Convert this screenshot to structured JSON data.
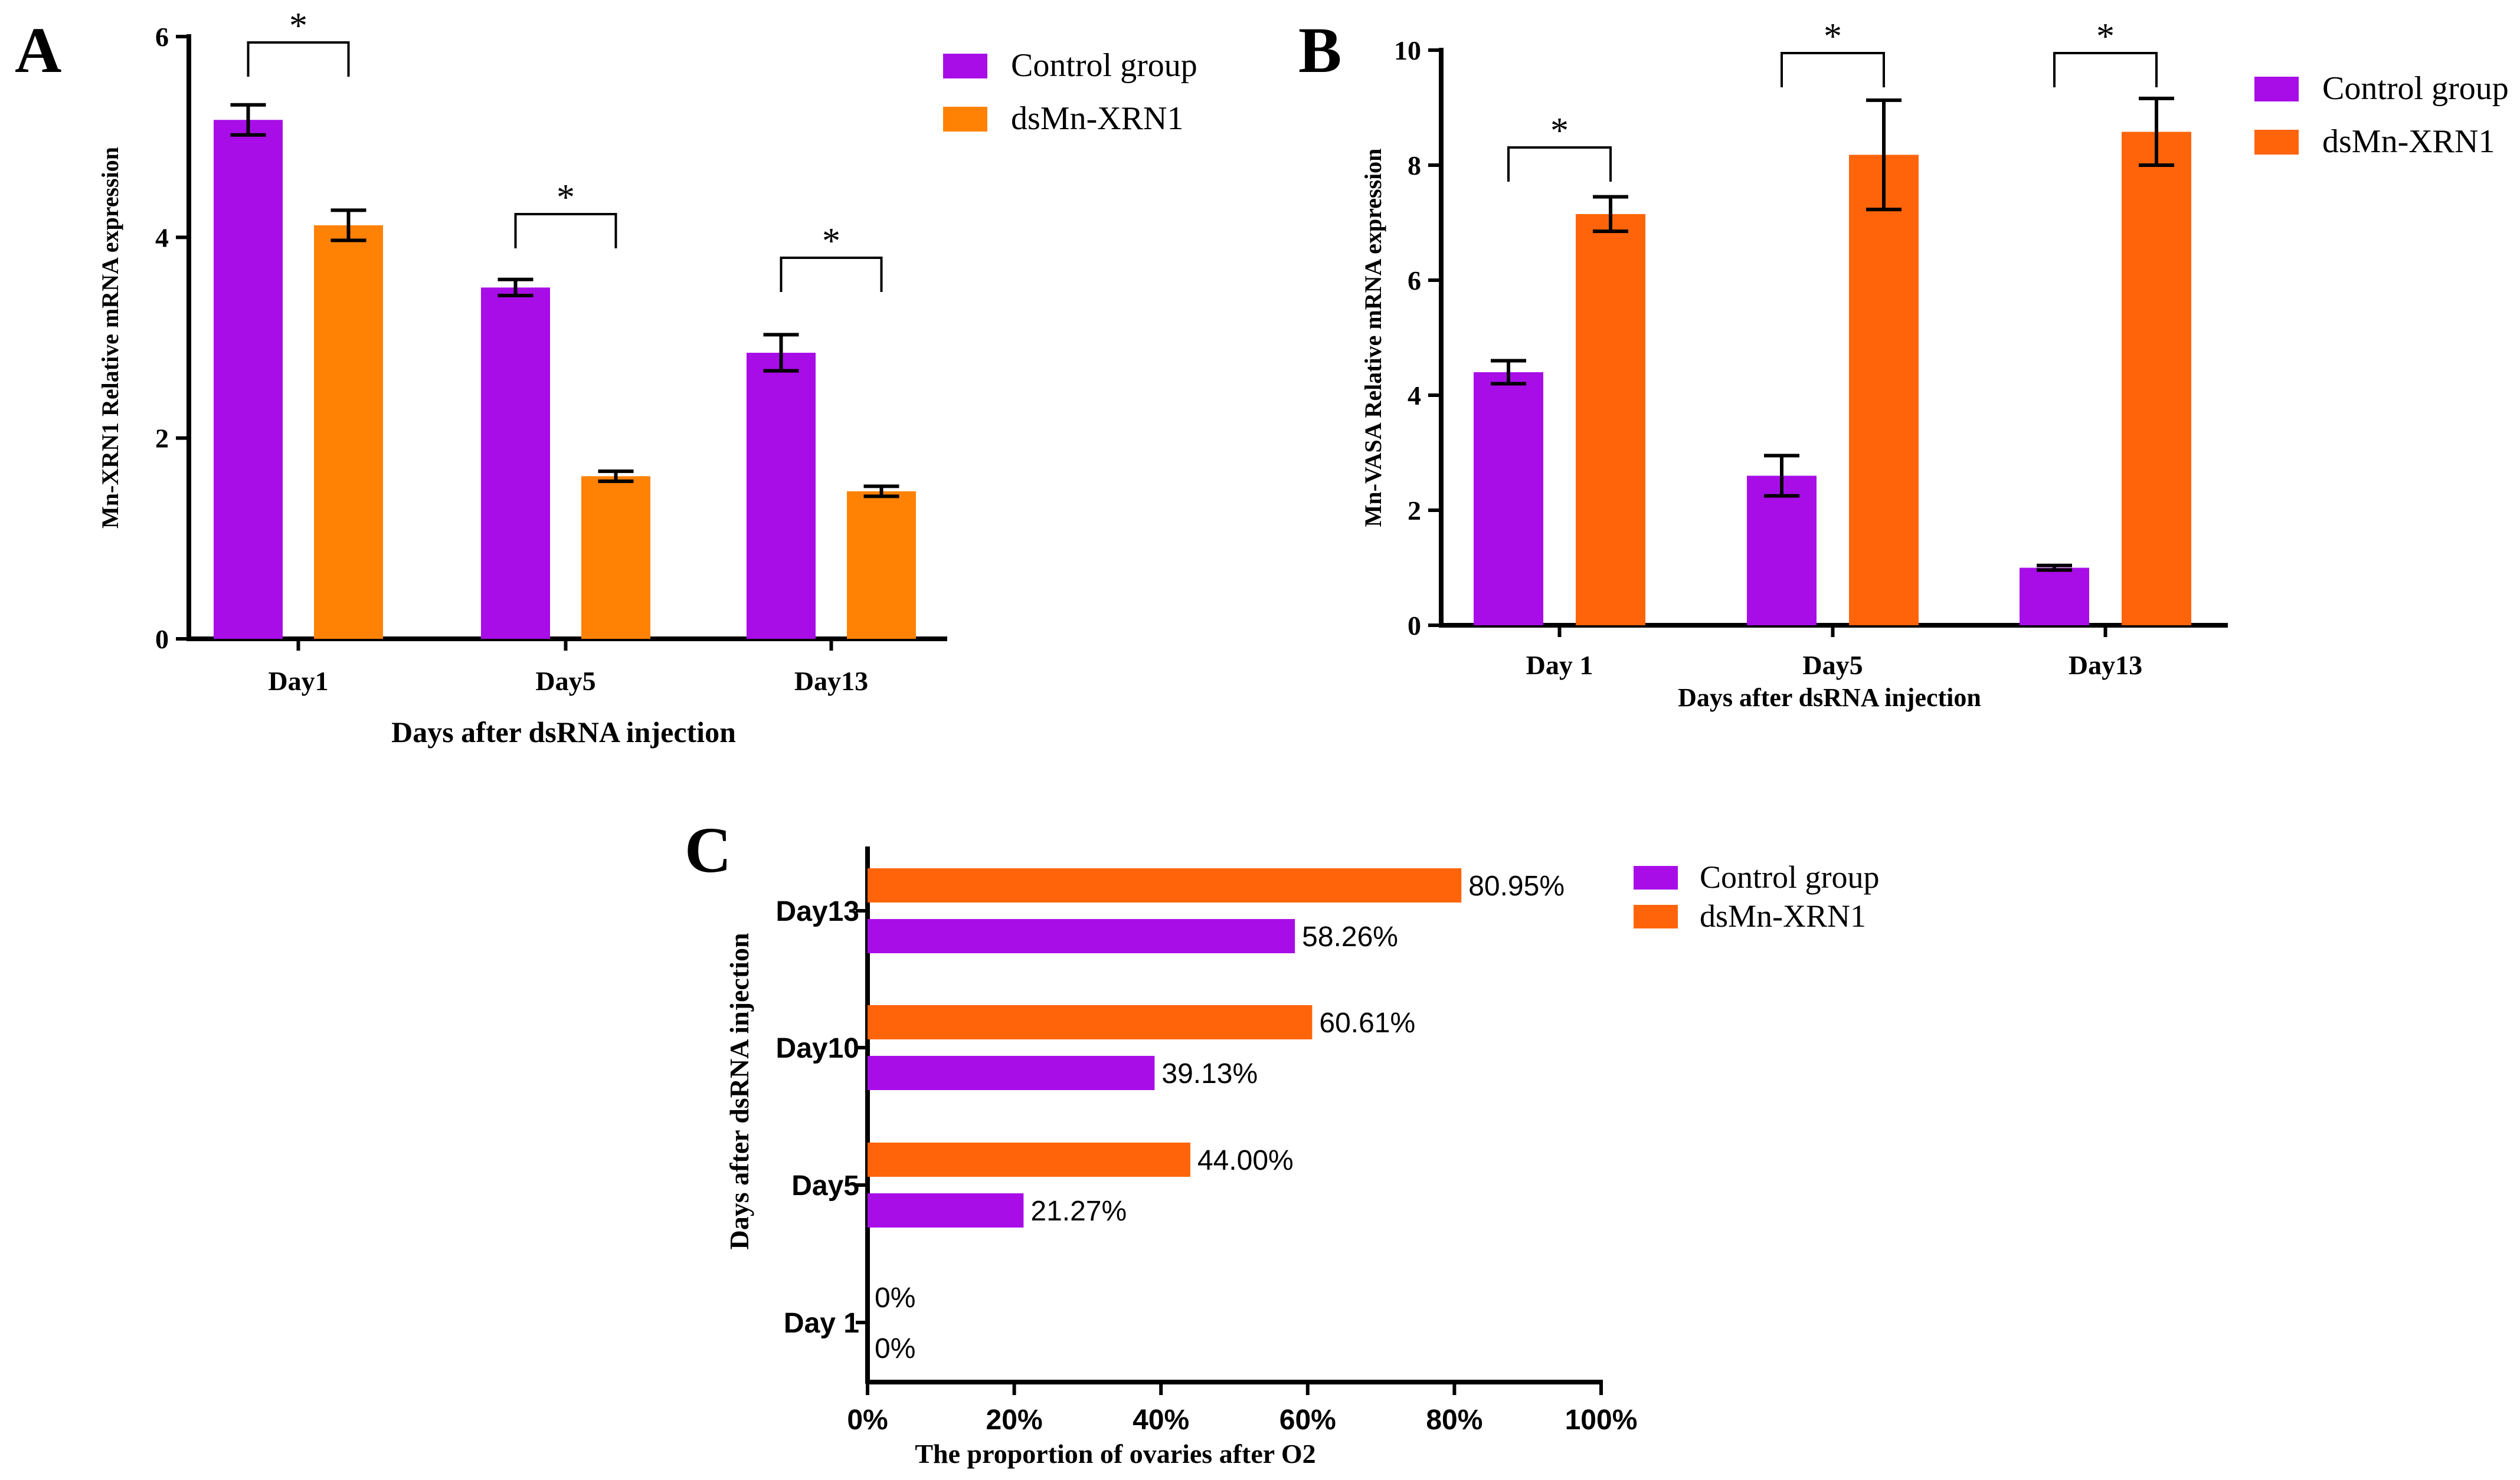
{
  "colors": {
    "control": "#A80DE8",
    "dsA": "#FF8205",
    "dsB": "#FF640A",
    "axis": "#000000"
  },
  "chart_data": [
    {
      "panel": "A",
      "type": "bar",
      "title": "",
      "xlabel": "Days after dsRNA injection",
      "ylabel": "Mn-XRN1 Relative mRNA expression",
      "ylim": [
        0,
        6
      ],
      "yticks": [
        "0",
        "2",
        "4",
        "6"
      ],
      "categories": [
        "Day1",
        "Day5",
        "Day13"
      ],
      "legend": "top-right",
      "series": [
        {
          "name": "Control group",
          "values": [
            5.17,
            3.5,
            2.85
          ],
          "errors": [
            0.15,
            0.08,
            0.18
          ]
        },
        {
          "name": "dsMn-XRN1",
          "values": [
            4.12,
            1.62,
            1.47
          ],
          "errors": [
            0.15,
            0.05,
            0.05
          ]
        }
      ],
      "significance": [
        "*",
        "*",
        "*"
      ]
    },
    {
      "panel": "B",
      "type": "bar",
      "title": "",
      "xlabel": "Days after dsRNA injection",
      "ylabel": "Mn-VASA Relative mRNA expression",
      "ylim": [
        0,
        10
      ],
      "yticks": [
        "0",
        "2",
        "4",
        "6",
        "8",
        "10"
      ],
      "categories": [
        "Day 1",
        "Day5",
        "Day13"
      ],
      "legend": "top-right",
      "series": [
        {
          "name": "Control group",
          "values": [
            4.4,
            2.6,
            1.0
          ],
          "errors": [
            0.2,
            0.35,
            0.04
          ]
        },
        {
          "name": "dsMn-XRN1",
          "values": [
            7.15,
            8.18,
            8.58
          ],
          "errors": [
            0.3,
            0.95,
            0.58
          ]
        }
      ],
      "significance": [
        "*",
        "*",
        "*"
      ]
    },
    {
      "panel": "C",
      "type": "bar",
      "orientation": "horizontal",
      "title": "",
      "xlabel": "The proportion of ovaries after O2",
      "ylabel": "Days after dsRNA injection",
      "xlim": [
        0,
        100
      ],
      "xticks": [
        "0%",
        "20%",
        "40%",
        "60%",
        "80%",
        "100%"
      ],
      "categories": [
        "Day13",
        "Day10",
        "Day5",
        "Day 1"
      ],
      "legend": "top-right",
      "series": [
        {
          "name": "Control group",
          "values": [
            58.26,
            39.13,
            21.27,
            0
          ],
          "labels": [
            "58.26%",
            "39.13%",
            "21.27%",
            "0%"
          ]
        },
        {
          "name": "dsMn-XRN1",
          "values": [
            80.95,
            60.61,
            44.0,
            0
          ],
          "labels": [
            "80.95%",
            "60.61%",
            "44.00%",
            "0%"
          ]
        }
      ]
    }
  ]
}
